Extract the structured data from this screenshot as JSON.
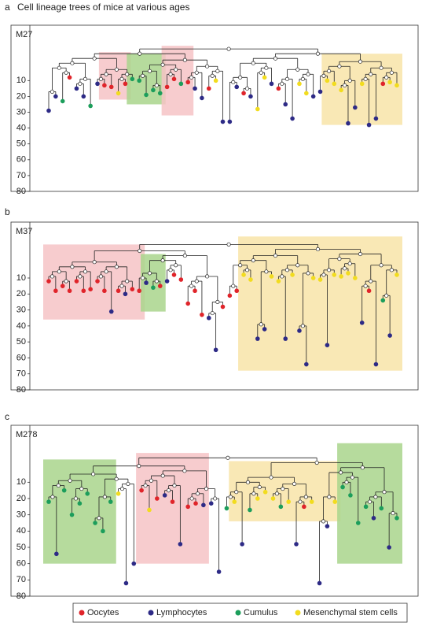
{
  "title": "Cell lineage trees of mice at various ages",
  "legend": [
    {
      "name": "Oocytes",
      "color": "#e0242a"
    },
    {
      "name": "Lymphocytes",
      "color": "#2d2a86"
    },
    {
      "name": "Cumulus",
      "color": "#1c9e5b"
    },
    {
      "name": "Mesenchymal stem cells",
      "color": "#f2dc1e"
    }
  ],
  "panels": [
    {
      "letter": "a",
      "name": "M27",
      "ylim": [
        -25,
        80
      ],
      "yticks": [
        10,
        20,
        30,
        40,
        50,
        60,
        70,
        80
      ],
      "leaves": {
        "depth": [
          29,
          20,
          23,
          8,
          15,
          20,
          26,
          12,
          13,
          14,
          18,
          12,
          9,
          10,
          19,
          16,
          18,
          14,
          9,
          12,
          11,
          15,
          21,
          15,
          10,
          36,
          36,
          14,
          18,
          20,
          28,
          8,
          12,
          15,
          25,
          34,
          12,
          18,
          20,
          17,
          10,
          12,
          16,
          37,
          27,
          12,
          38,
          34,
          12,
          11,
          13
        ],
        "color": [
          "#2d2a86",
          "#2d2a86",
          "#1c9e5b",
          "#e0242a",
          "#2d2a86",
          "#2d2a86",
          "#1c9e5b",
          "#2d2a86",
          "#e0242a",
          "#e0242a",
          "#f2dc1e",
          "#e0242a",
          "#1c9e5b",
          "#1c9e5b",
          "#1c9e5b",
          "#1c9e5b",
          "#1c9e5b",
          "#e0242a",
          "#e0242a",
          "#1c9e5b",
          "#e0242a",
          "#2d2a86",
          "#2d2a86",
          "#e0242a",
          "#f2dc1e",
          "#2d2a86",
          "#2d2a86",
          "#2d2a86",
          "#e0242a",
          "#2d2a86",
          "#f2dc1e",
          "#f2dc1e",
          "#2d2a86",
          "#e0242a",
          "#2d2a86",
          "#2d2a86",
          "#f2dc1e",
          "#f2dc1e",
          "#2d2a86",
          "#2d2a86",
          "#f2dc1e",
          "#f2dc1e",
          "#f2dc1e",
          "#2d2a86",
          "#2d2a86",
          "#f2dc1e",
          "#2d2a86",
          "#2d2a86",
          "#e0242a",
          "#f2dc1e",
          "#f2dc1e"
        ]
      },
      "boxes": [
        {
          "color": "#f6c3c6",
          "first_leaf": 8,
          "last_leaf": 11,
          "depth": [
            -8,
            22
          ]
        },
        {
          "color": "#a9d58c",
          "first_leaf": 12,
          "last_leaf": 16,
          "depth": [
            -7,
            25
          ]
        },
        {
          "color": "#f6c3c6",
          "first_leaf": 17,
          "last_leaf": 20,
          "depth": [
            -12,
            32
          ]
        },
        {
          "color": "#f8e4a8",
          "first_leaf": 40,
          "last_leaf": 50,
          "depth": [
            -7,
            38
          ]
        }
      ]
    },
    {
      "letter": "b",
      "name": "M37",
      "ylim": [
        -25,
        80
      ],
      "yticks": [
        10,
        20,
        30,
        40,
        50,
        60,
        70,
        80
      ],
      "leaves": {
        "depth": [
          12,
          18,
          15,
          18,
          12,
          18,
          17,
          12,
          18,
          31,
          18,
          20,
          17,
          18,
          13,
          16,
          15,
          12,
          8,
          11,
          26,
          18,
          33,
          35,
          55,
          28,
          21,
          18,
          8,
          11,
          48,
          42,
          9,
          12,
          48,
          8,
          43,
          64,
          10,
          11,
          52,
          8,
          9,
          7,
          10,
          38,
          18,
          64,
          24,
          46,
          8
        ],
        "color": [
          "#e0242a",
          "#e0242a",
          "#e0242a",
          "#e0242a",
          "#e0242a",
          "#e0242a",
          "#e0242a",
          "#e0242a",
          "#e0242a",
          "#2d2a86",
          "#e0242a",
          "#2d2a86",
          "#e0242a",
          "#e0242a",
          "#2d2a86",
          "#1c9e5b",
          "#e0242a",
          "#2d2a86",
          "#e0242a",
          "#e0242a",
          "#e0242a",
          "#e0242a",
          "#e0242a",
          "#2d2a86",
          "#2d2a86",
          "#e0242a",
          "#e0242a",
          "#e0242a",
          "#f2dc1e",
          "#f2dc1e",
          "#2d2a86",
          "#2d2a86",
          "#f2dc1e",
          "#f2dc1e",
          "#2d2a86",
          "#f2dc1e",
          "#2d2a86",
          "#2d2a86",
          "#f2dc1e",
          "#f2dc1e",
          "#2d2a86",
          "#f2dc1e",
          "#f2dc1e",
          "#f2dc1e",
          "#f2dc1e",
          "#2d2a86",
          "#e0242a",
          "#2d2a86",
          "#1c9e5b",
          "#2d2a86",
          "#f2dc1e"
        ]
      },
      "boxes": [
        {
          "color": "#f6c3c6",
          "first_leaf": 0,
          "last_leaf": 13,
          "depth": [
            -11,
            36
          ]
        },
        {
          "color": "#a9d58c",
          "first_leaf": 14,
          "last_leaf": 16,
          "depth": [
            -5,
            31
          ]
        },
        {
          "color": "#f8e4a8",
          "first_leaf": 28,
          "last_leaf": 50,
          "depth": [
            -16,
            68
          ]
        }
      ]
    },
    {
      "letter": "c",
      "name": "M278",
      "ylim": [
        -25,
        80
      ],
      "yticks": [
        10,
        20,
        30,
        40,
        50,
        60,
        70,
        80
      ],
      "leaves": {
        "depth": [
          22,
          54,
          15,
          30,
          23,
          17,
          35,
          40,
          22,
          17,
          72,
          60,
          15,
          27,
          20,
          18,
          22,
          48,
          25,
          23,
          24,
          23,
          65,
          26,
          22,
          48,
          27,
          20,
          16,
          20,
          25,
          22,
          48,
          25,
          22,
          72,
          37,
          22,
          13,
          18,
          35,
          25,
          32,
          26,
          50,
          32
        ],
        "color": [
          "#1c9e5b",
          "#2d2a86",
          "#1c9e5b",
          "#1c9e5b",
          "#1c9e5b",
          "#1c9e5b",
          "#1c9e5b",
          "#1c9e5b",
          "#1c9e5b",
          "#f2dc1e",
          "#2d2a86",
          "#2d2a86",
          "#e0242a",
          "#f2dc1e",
          "#e0242a",
          "#2d2a86",
          "#e0242a",
          "#2d2a86",
          "#e0242a",
          "#e0242a",
          "#2d2a86",
          "#2d2a86",
          "#2d2a86",
          "#1c9e5b",
          "#f2dc1e",
          "#2d2a86",
          "#1c9e5b",
          "#f2dc1e",
          "#f2dc1e",
          "#f2dc1e",
          "#1c9e5b",
          "#f2dc1e",
          "#2d2a86",
          "#e0242a",
          "#f2dc1e",
          "#2d2a86",
          "#2d2a86",
          "#f2dc1e",
          "#1c9e5b",
          "#1c9e5b",
          "#1c9e5b",
          "#1c9e5b",
          "#2d2a86",
          "#1c9e5b",
          "#2d2a86",
          "#1c9e5b"
        ]
      },
      "boxes": [
        {
          "color": "#a9d58c",
          "first_leaf": 0,
          "last_leaf": 8,
          "depth": [
            -4,
            60
          ]
        },
        {
          "color": "#f6c3c6",
          "first_leaf": 12,
          "last_leaf": 20,
          "depth": [
            -8,
            60
          ]
        },
        {
          "color": "#f8e4a8",
          "first_leaf": 24,
          "last_leaf": 37,
          "depth": [
            -3,
            34
          ]
        },
        {
          "color": "#a9d58c",
          "first_leaf": 38,
          "last_leaf": 45,
          "depth": [
            -14,
            60
          ]
        }
      ]
    }
  ]
}
